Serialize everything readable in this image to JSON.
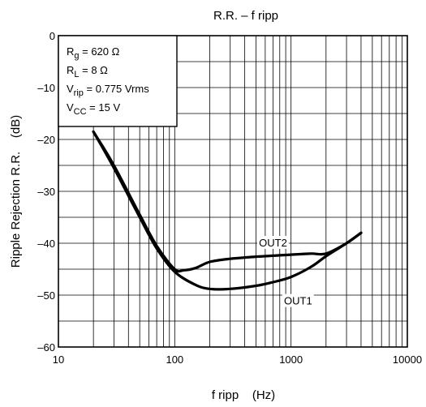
{
  "chart_data": {
    "type": "line",
    "title": "R.R. – f ripp",
    "xlabel": "f ripp    (Hz)",
    "ylabel": "Ripple Rejection R.R.    (dB)",
    "xscale": "log",
    "xlim": [
      10,
      10000
    ],
    "ylim": [
      -60,
      0
    ],
    "x_ticks": [
      10,
      100,
      1000,
      10000
    ],
    "x_tick_labels": [
      "10",
      "100",
      "1000",
      "10000"
    ],
    "y_ticks": [
      0,
      -10,
      -20,
      -30,
      -40,
      -50,
      -60
    ],
    "y_tick_labels": [
      "0",
      "–10",
      "–20",
      "–30",
      "–40",
      "–50",
      "–60"
    ],
    "grid": true,
    "conditions": [
      {
        "base": "R",
        "sub": "g",
        "rest": " = 620 Ω"
      },
      {
        "base": "R",
        "sub": "L",
        "rest": " = 8 Ω"
      },
      {
        "base": "V",
        "sub": "rip",
        "rest": " = 0.775 Vrms"
      },
      {
        "base": "V",
        "sub": "CC",
        "rest": " = 15 V"
      }
    ],
    "series": [
      {
        "name": "OUT1",
        "x": [
          20,
          30,
          50,
          70,
          100,
          150,
          200,
          300,
          500,
          700,
          1000,
          1500,
          2000,
          3000,
          4000
        ],
        "y": [
          -18.5,
          -25.5,
          -35,
          -41,
          -45.5,
          -48,
          -48.8,
          -48.8,
          -48.2,
          -47.5,
          -46.5,
          -44.5,
          -42.5,
          -40,
          -38
        ]
      },
      {
        "name": "OUT2",
        "x": [
          20,
          30,
          50,
          70,
          100,
          120,
          150,
          200,
          300,
          500,
          700,
          1000,
          1500,
          2000,
          3000,
          4000
        ],
        "y": [
          -18.5,
          -25,
          -34.5,
          -40.5,
          -45,
          -45.2,
          -44.8,
          -43.6,
          -43,
          -42.6,
          -42.4,
          -42.2,
          -42,
          -42,
          -40,
          -38
        ]
      }
    ]
  }
}
